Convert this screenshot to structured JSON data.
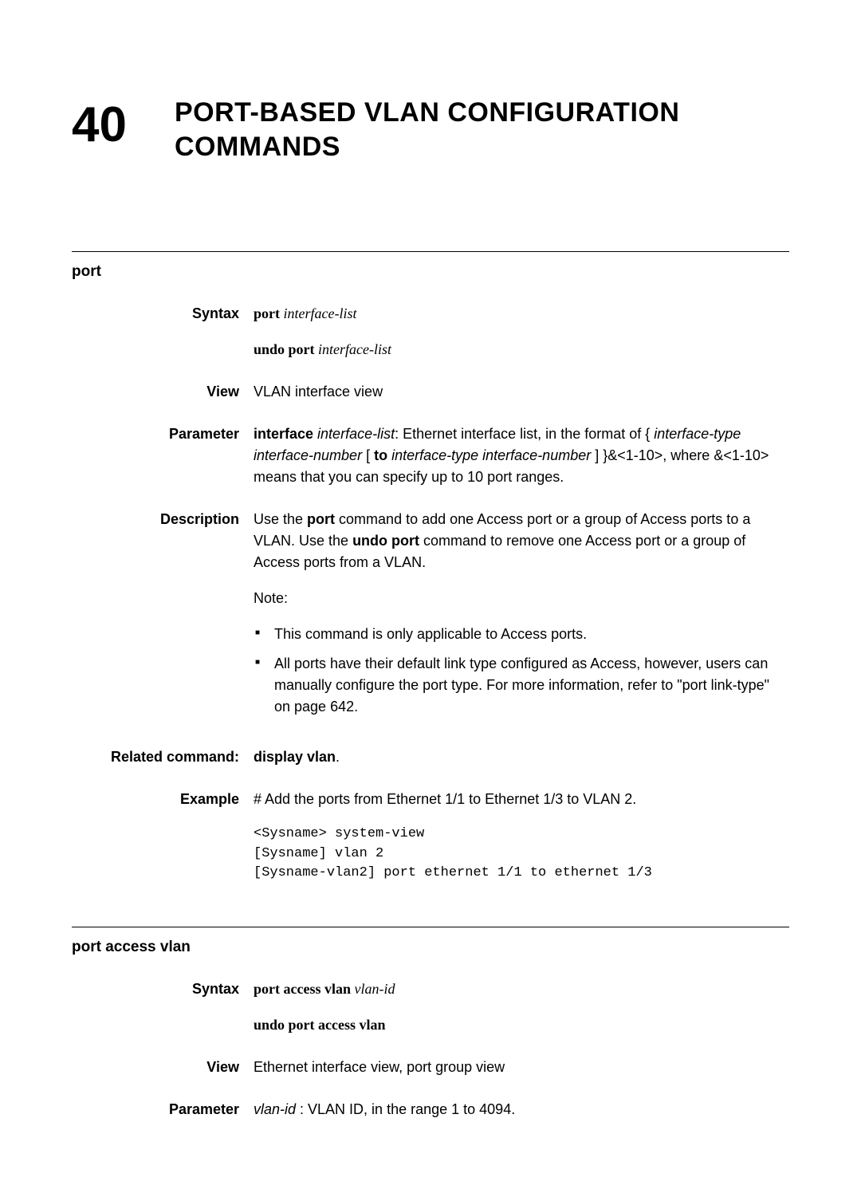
{
  "chapter": {
    "number": "40",
    "title_line1": "PORT-BASED VLAN CONFIGURATION",
    "title_line2": "COMMANDS"
  },
  "section1": {
    "title": "port",
    "syntax_label": "Syntax",
    "syntax_cmd1_bold": "port",
    "syntax_cmd1_italic": " interface-list",
    "syntax_cmd2_bold": "undo port",
    "syntax_cmd2_italic": " interface-list",
    "view_label": "View",
    "view_text": "VLAN interface view",
    "parameter_label": "Parameter",
    "param_bold1": "interface",
    "param_italic1": " interface-list",
    "param_text1": ": Ethernet interface list, in the format of { ",
    "param_italic2": "interface-type interface-number",
    "param_text2": " [ ",
    "param_bold2": "to",
    "param_italic3": " interface-type interface-number",
    "param_text3": " ] }&<1-10>, where &<1-10> means that you can specify up to 10 port ranges.",
    "description_label": "Description",
    "desc_p1_a": "Use the ",
    "desc_p1_bold1": "port",
    "desc_p1_b": " command to add one Access port or a group of Access ports to a VLAN. Use the ",
    "desc_p1_bold2": "undo port",
    "desc_p1_c": " command to remove one Access port or a group of Access ports from a VLAN.",
    "desc_note": "Note:",
    "desc_li1": "This command is only applicable to Access ports.",
    "desc_li2": "All ports have their default link type configured as Access, however, users can manually configure the port type. For more information, refer to \"port link-type\" on page 642.",
    "related_label": "Related command:",
    "related_text_bold": "display vlan",
    "related_text_tail": ".",
    "example_label": "Example",
    "example_intro": "# Add the ports from Ethernet 1/1 to Ethernet 1/3 to VLAN 2.",
    "example_code": "<Sysname> system-view\n[Sysname] vlan 2\n[Sysname-vlan2] port ethernet 1/1 to ethernet 1/3"
  },
  "section2": {
    "title": "port access vlan",
    "syntax_label": "Syntax",
    "syntax_cmd1_bold": "port access vlan",
    "syntax_cmd1_italic": " vlan-id",
    "syntax_cmd2_bold": "undo port access vlan",
    "view_label": "View",
    "view_text": "Ethernet interface view, port group view",
    "parameter_label": "Parameter",
    "param_italic1": "vlan-id",
    "param_text1": " : VLAN ID, in the range 1 to 4094."
  }
}
